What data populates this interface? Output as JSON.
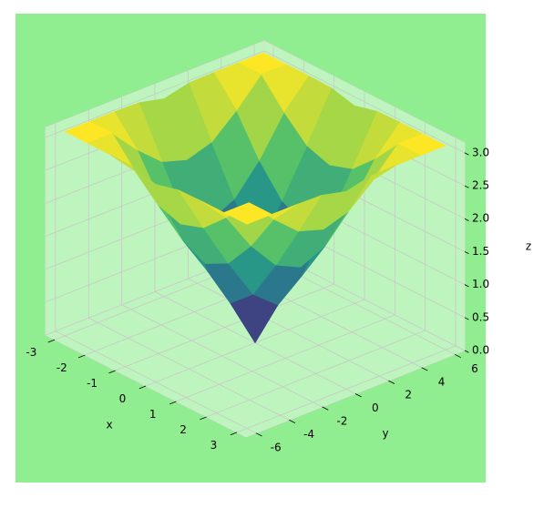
{
  "chart_data": {
    "type": "surface3d",
    "x_label": "x",
    "y_label": "y",
    "z_label": "z",
    "x": [
      -3,
      -2.25,
      -1.5,
      -0.75,
      0,
      0.75,
      1.5,
      2.25,
      3
    ],
    "y": [
      -6,
      -4.5,
      -3,
      -1.5,
      0,
      1.5,
      3,
      4.5,
      6
    ],
    "z": [
      [
        3.1,
        3.1,
        3.1,
        3.09,
        3,
        3.09,
        3.1,
        3.1,
        3.1
      ],
      [
        3.1,
        3.1,
        2.7,
        2.37,
        2.25,
        2.37,
        2.7,
        3.1,
        3.1
      ],
      [
        3.1,
        2.7,
        2.12,
        1.68,
        1.5,
        1.68,
        2.12,
        2.7,
        3.1
      ],
      [
        3.09,
        2.37,
        1.68,
        1.06,
        0.75,
        1.06,
        1.68,
        2.37,
        3.09
      ],
      [
        3,
        2.25,
        1.5,
        0.75,
        0,
        0.75,
        1.5,
        2.25,
        3
      ],
      [
        3.09,
        2.37,
        1.68,
        1.06,
        0.75,
        1.06,
        1.68,
        2.37,
        3.09
      ],
      [
        3.1,
        2.7,
        2.12,
        1.68,
        1.5,
        1.68,
        2.12,
        2.7,
        3.1
      ],
      [
        3.1,
        3.1,
        2.7,
        2.37,
        2.25,
        2.37,
        2.7,
        3.1,
        3.1
      ],
      [
        3.1,
        3.1,
        3.1,
        3.09,
        3,
        3.09,
        3.1,
        3.1,
        3.1
      ]
    ],
    "xlim": [
      -3.3,
      3.3
    ],
    "ylim": [
      -6.6,
      6.6
    ],
    "zlim": [
      0,
      3.15
    ],
    "xticks": [
      -3,
      -2,
      -1,
      0,
      1,
      2,
      3
    ],
    "yticks": [
      -6,
      -4,
      -2,
      0,
      2,
      4,
      6
    ],
    "zticks": [
      {
        "value": 0,
        "label": "0.0"
      },
      0.5,
      {
        "value": 1,
        "label": "1.0"
      },
      1.5,
      {
        "value": 2,
        "label": "2.0"
      },
      2.5,
      {
        "value": 3,
        "label": "3.0"
      }
    ],
    "grid": true,
    "colormap": [
      "#440154",
      "#3b528b",
      "#21918c",
      "#5ec962",
      "#fde725"
    ],
    "background": "#90ee90"
  }
}
